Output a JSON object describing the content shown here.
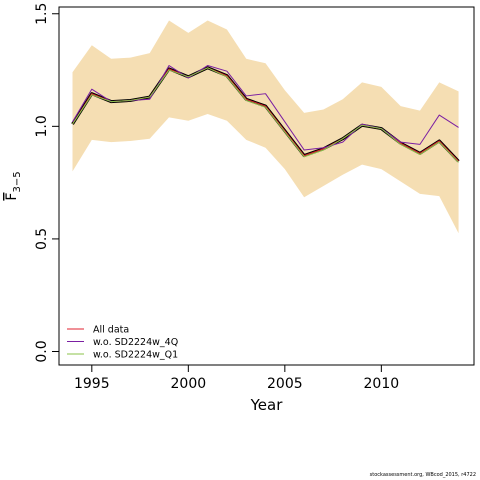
{
  "chart_data": {
    "type": "line",
    "xlabel": "Year",
    "ylabel_main": "F",
    "ylabel_sub": "3−5",
    "xlim": [
      1993.3,
      2014.8
    ],
    "ylim": [
      -0.06,
      1.53
    ],
    "xticks": [
      1995,
      2000,
      2005,
      2010
    ],
    "xtick_labels": [
      "1995",
      "2000",
      "2005",
      "2010"
    ],
    "yticks": [
      0.0,
      0.5,
      1.0,
      1.5
    ],
    "ytick_labels": [
      "0.0",
      "0.5",
      "1.0",
      "1.5"
    ],
    "x": [
      1994,
      1995,
      1996,
      1997,
      1998,
      1999,
      2000,
      2001,
      2002,
      2003,
      2004,
      2005,
      2006,
      2007,
      2008,
      2009,
      2010,
      2011,
      2012,
      2013,
      2014
    ],
    "band": {
      "color": "#f5deb3",
      "lower": [
        0.8,
        0.94,
        0.93,
        0.935,
        0.945,
        1.04,
        1.025,
        1.055,
        1.025,
        0.94,
        0.905,
        0.81,
        0.685,
        0.735,
        0.785,
        0.83,
        0.81,
        0.755,
        0.7,
        0.69,
        0.525
      ],
      "upper": [
        1.24,
        1.36,
        1.3,
        1.305,
        1.325,
        1.47,
        1.415,
        1.47,
        1.43,
        1.3,
        1.28,
        1.16,
        1.06,
        1.075,
        1.12,
        1.195,
        1.175,
        1.09,
        1.07,
        1.195,
        1.155
      ]
    },
    "series": [
      {
        "name": "All data",
        "color": "#e0202f",
        "values": [
          1.01,
          1.145,
          1.11,
          1.115,
          1.13,
          1.255,
          1.22,
          1.26,
          1.225,
          1.12,
          1.09,
          0.98,
          0.87,
          0.9,
          0.945,
          1.005,
          0.99,
          0.925,
          0.88,
          0.935,
          0.845
        ]
      },
      {
        "name": "w.o. SD2224w_4Q",
        "color": "#7b1fa2",
        "values": [
          1.02,
          1.165,
          1.11,
          1.115,
          1.12,
          1.27,
          1.215,
          1.27,
          1.245,
          1.135,
          1.145,
          1.02,
          0.895,
          0.905,
          0.93,
          1.01,
          0.99,
          0.93,
          0.92,
          1.05,
          0.995
        ]
      },
      {
        "name": "w.o. SD2224w_Q1",
        "color": "#8bc34a",
        "values": [
          1.01,
          1.14,
          1.11,
          1.115,
          1.13,
          1.25,
          1.22,
          1.26,
          1.22,
          1.115,
          1.085,
          0.975,
          0.865,
          0.895,
          0.945,
          1.005,
          0.99,
          0.92,
          0.875,
          0.93,
          0.84
        ]
      }
    ],
    "central_line": {
      "color": "#000000",
      "values": [
        1.01,
        1.145,
        1.11,
        1.115,
        1.13,
        1.255,
        1.22,
        1.26,
        1.225,
        1.12,
        1.09,
        0.98,
        0.87,
        0.9,
        0.945,
        1.005,
        0.99,
        0.925,
        0.88,
        0.935,
        0.845
      ]
    },
    "legend": {
      "placement": "bottom-left",
      "entries": [
        "All data",
        "w.o. SD2224w_4Q",
        "w.o. SD2224w_Q1"
      ]
    },
    "grid": false
  },
  "footer_note": "stockassessment.org, WBcod_2015, r4722"
}
